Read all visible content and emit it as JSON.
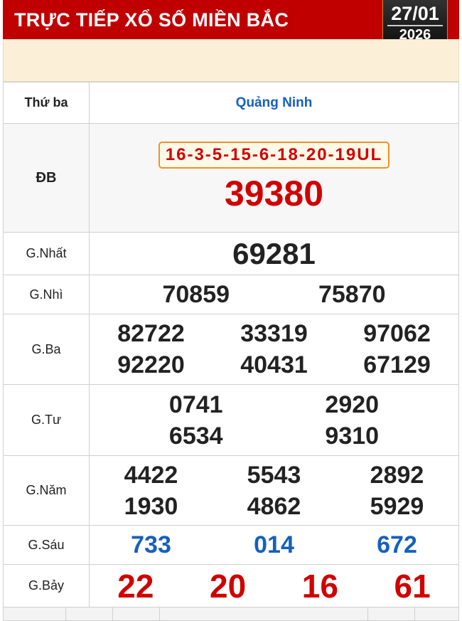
{
  "header": {
    "title": "TRỰC TIẾP XỔ SỐ MIỀN BẮC",
    "date_day": "27/01",
    "date_year": "2026"
  },
  "table": {
    "day": "Thứ ba",
    "province": "Quảng Ninh",
    "db": {
      "label": "ĐB",
      "code": "16-3-5-15-6-18-20-19UL",
      "number": "39380"
    },
    "g1": {
      "label": "G.Nhất",
      "numbers": [
        "69281"
      ]
    },
    "g2": {
      "label": "G.Nhì",
      "numbers": [
        "70859",
        "75870"
      ]
    },
    "g3": {
      "label": "G.Ba",
      "numbers": [
        "82722",
        "33319",
        "97062",
        "92220",
        "40431",
        "67129"
      ]
    },
    "g4": {
      "label": "G.Tư",
      "numbers": [
        "0741",
        "2920",
        "6534",
        "9310"
      ]
    },
    "g5": {
      "label": "G.Năm",
      "numbers": [
        "4422",
        "5543",
        "2892",
        "1930",
        "4862",
        "5929"
      ]
    },
    "g6": {
      "label": "G.Sáu",
      "numbers": [
        "733",
        "014",
        "672"
      ]
    },
    "g7": {
      "label": "G.Bảy",
      "numbers": [
        "22",
        "20",
        "16",
        "61"
      ]
    }
  },
  "colors": {
    "header": "#c00000",
    "special": "#d00000",
    "g6": "#1560bd"
  }
}
